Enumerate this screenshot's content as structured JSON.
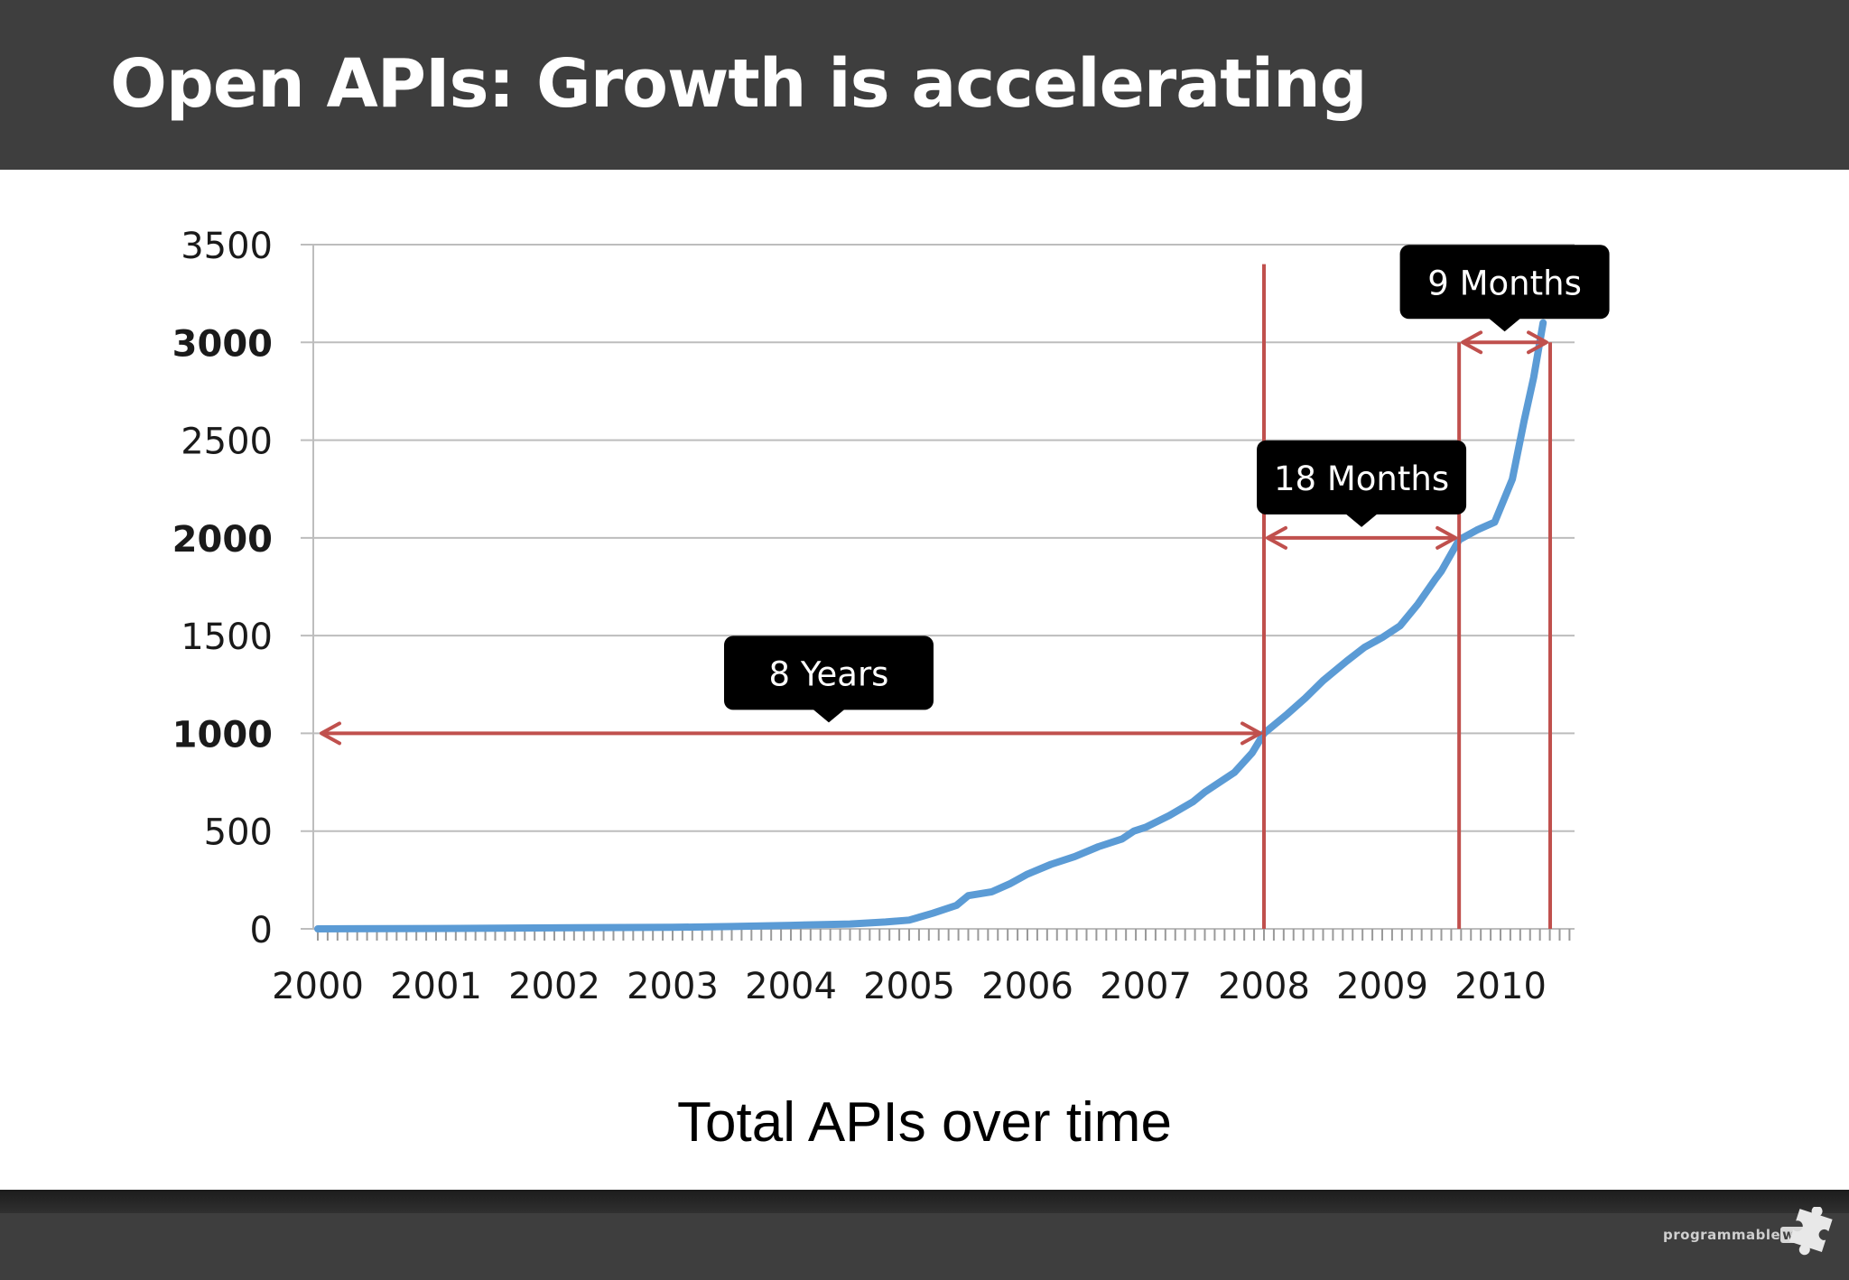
{
  "slide": {
    "title": "Open APIs: Growth is accelerating",
    "caption": "Total APIs over time",
    "logo_text": "programmable",
    "logo_suffix": "web"
  },
  "colors": {
    "header_bg": "#3e3e3e",
    "line": "#5b9bd5",
    "annotation": "#c0504d",
    "callout_bg": "#000000"
  },
  "chart_data": {
    "type": "line",
    "title": "",
    "xlabel": "",
    "ylabel": "",
    "x_ticks": [
      "2000",
      "2001",
      "2002",
      "2003",
      "2004",
      "2005",
      "2006",
      "2007",
      "2008",
      "2009",
      "2010"
    ],
    "y_ticks": [
      "0",
      "500",
      "1000",
      "1500",
      "2000",
      "2500",
      "3000",
      "3500"
    ],
    "xlim": [
      2000,
      2010.65
    ],
    "ylim": [
      0,
      3500
    ],
    "grid": true,
    "legend": "none",
    "series": [
      {
        "x": [
          2000,
          2001,
          2002,
          2003,
          2003.5,
          2004,
          2004.5,
          2004.8,
          2005,
          2005.2,
          2005.4,
          2005.5,
          2005.7,
          2005.85,
          2006,
          2006.2,
          2006.4,
          2006.6,
          2006.8,
          2006.9,
          2007,
          2007.2,
          2007.4,
          2007.5,
          2007.75,
          2007.9,
          2008,
          2008.2,
          2008.35,
          2008.5,
          2008.7,
          2008.85,
          2009,
          2009.15,
          2009.3,
          2009.45,
          2009.5,
          2009.65,
          2009.8,
          2009.95,
          2010.1,
          2010.2,
          2010.28,
          2010.36
        ],
        "y": [
          0,
          2,
          5,
          8,
          12,
          18,
          25,
          35,
          45,
          80,
          120,
          170,
          190,
          230,
          280,
          330,
          370,
          420,
          460,
          500,
          520,
          580,
          650,
          700,
          800,
          900,
          1000,
          1100,
          1180,
          1270,
          1370,
          1440,
          1490,
          1550,
          1660,
          1790,
          1830,
          1990,
          2040,
          2080,
          2300,
          2600,
          2820,
          3100
        ]
      }
    ],
    "annotations": [
      {
        "label": "8 Years",
        "from": 2000,
        "to": 2008,
        "level": 1000
      },
      {
        "label": "18 Months",
        "from": 2008,
        "to": 2009.65,
        "level": 2000
      },
      {
        "label": "9 Months",
        "from": 2009.65,
        "to": 2010.42,
        "level": 3000
      }
    ],
    "vertical_lines": [
      {
        "x": 2008,
        "top": 3400
      },
      {
        "x": 2009.65,
        "top": 3000
      },
      {
        "x": 2010.42,
        "top": 3000
      }
    ]
  }
}
